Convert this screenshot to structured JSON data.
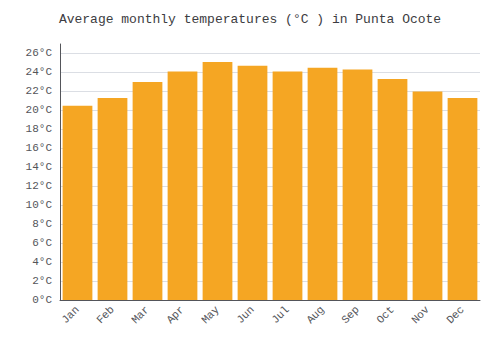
{
  "chart_data": {
    "type": "bar",
    "title": "Average monthly temperatures (°C ) in Punta Ocote",
    "categories": [
      "Jan",
      "Feb",
      "Mar",
      "Apr",
      "May",
      "Jun",
      "Jul",
      "Aug",
      "Sep",
      "Oct",
      "Nov",
      "Dec"
    ],
    "values": [
      20.5,
      21.3,
      23.0,
      24.1,
      25.1,
      24.7,
      24.1,
      24.5,
      24.3,
      23.3,
      22.0,
      21.3
    ],
    "color": "#F5A623",
    "ylim": [
      0,
      27
    ],
    "yticks": [
      {
        "value": 0,
        "label": "0°C"
      },
      {
        "value": 2,
        "label": "2°C"
      },
      {
        "value": 4,
        "label": "4°C"
      },
      {
        "value": 6,
        "label": "6°C"
      },
      {
        "value": 8,
        "label": "8°C"
      },
      {
        "value": 10,
        "label": "10°C"
      },
      {
        "value": 12,
        "label": "12°C"
      },
      {
        "value": 14,
        "label": "14°C"
      },
      {
        "value": 16,
        "label": "16°C"
      },
      {
        "value": 18,
        "label": "18°C"
      },
      {
        "value": 20,
        "label": "20°C"
      },
      {
        "value": 22,
        "label": "22°C"
      },
      {
        "value": 24,
        "label": "24°C"
      },
      {
        "value": 26,
        "label": "26°C"
      }
    ],
    "grid": true
  }
}
